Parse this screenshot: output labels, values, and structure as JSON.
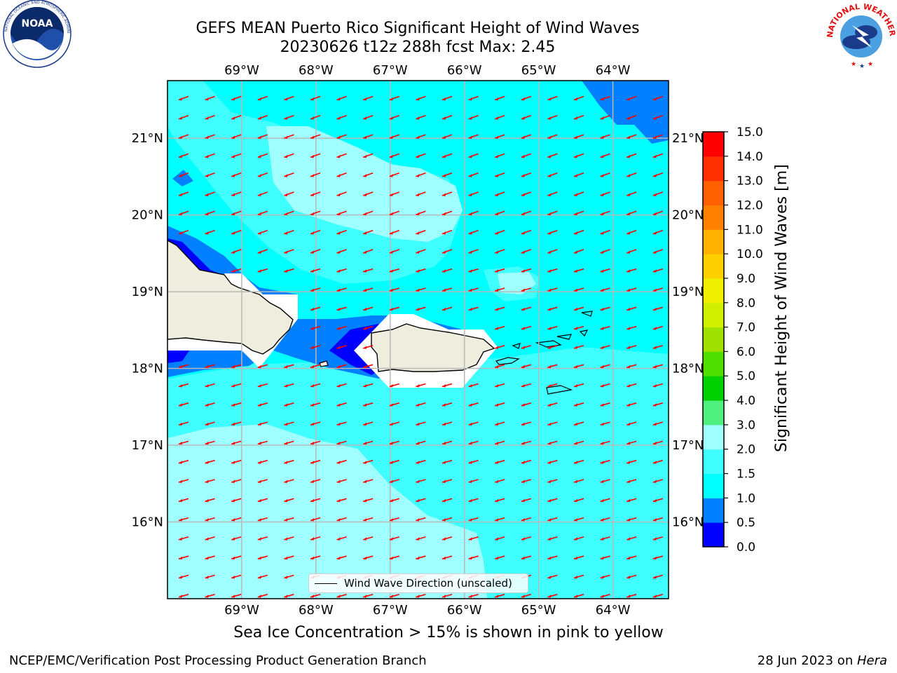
{
  "header": {
    "title_line1": "GEFS MEAN Puerto Rico Significant Height of Wind Waves",
    "title_line2": "20230626 t12z 288h fcst   Max: 2.45"
  },
  "logos": {
    "left": {
      "name": "NOAA",
      "text": "NOAA",
      "ring_text": "NATIONAL OCEANIC AND ATMOSPHERIC ADMINISTRATION · U.S. DEPARTMENT OF COMMERCE"
    },
    "right": {
      "name": "National Weather Service",
      "ring_text": "NATIONAL WEATHER SERVICE"
    }
  },
  "map": {
    "lon_ticks": [
      "69°W",
      "68°W",
      "67°W",
      "66°W",
      "65°W",
      "64°W"
    ],
    "lat_ticks": [
      "21°N",
      "20°N",
      "19°N",
      "18°N",
      "17°N",
      "16°N"
    ],
    "lon_values": [
      -69,
      -68,
      -67,
      -66,
      -65,
      -64
    ],
    "lat_values": [
      21,
      20,
      19,
      18,
      17,
      16
    ],
    "extent": {
      "lon_min": -70.0,
      "lon_max": -63.25,
      "lat_min": 15.0,
      "lat_max": 21.75
    },
    "arrow_color": "#ff0000",
    "land_color": "#efedde",
    "ocean_colors": {
      "0.5-1.0": "#0080ff",
      "1.0-1.5": "#00ffff",
      "1.5-2.0": "#40ffff",
      "2.0-3.0": "#a0ffff",
      "0.0-0.5": "#0000ff"
    },
    "legend_label": "Wind Wave Direction (unscaled)"
  },
  "colorbar": {
    "label": "Significant Height of Wind Waves [m]",
    "ticks": [
      "0.0",
      "0.5",
      "1.0",
      "1.5",
      "2.0",
      "3.0",
      "4.0",
      "5.0",
      "6.0",
      "7.0",
      "8.0",
      "9.0",
      "10.0",
      "11.0",
      "12.0",
      "13.0",
      "14.0",
      "15.0"
    ],
    "colors": [
      "#0000ff",
      "#0080ff",
      "#00ffff",
      "#40ffff",
      "#a0ffff",
      "#50f080",
      "#00d000",
      "#50e000",
      "#a0e000",
      "#d0f000",
      "#f0f000",
      "#ffd000",
      "#ffb000",
      "#ff8000",
      "#ff6000",
      "#ff3000",
      "#ff0000"
    ]
  },
  "subtitle": "Sea Ice Concentration > 15% is shown in pink to yellow",
  "footer": {
    "left": "NCEP/EMC/Verification Post Processing Product Generation Branch",
    "right_prefix": "28 Jun 2023 on ",
    "right_italic": "Hera"
  }
}
